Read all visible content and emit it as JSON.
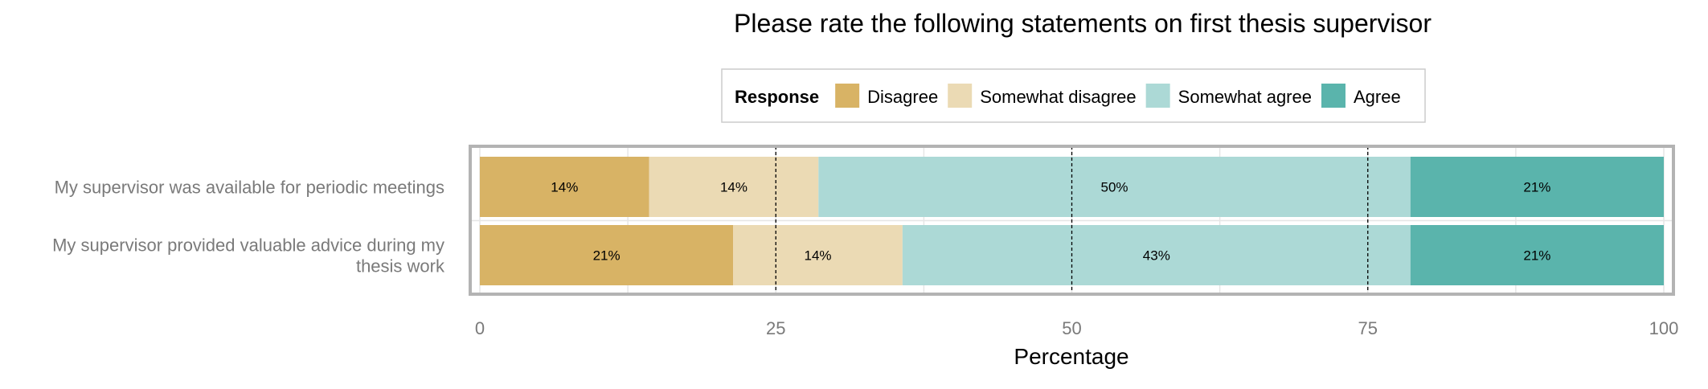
{
  "chart_data": {
    "type": "bar",
    "orientation": "horizontal",
    "stacked": true,
    "title": "Please rate the following statements on first thesis supervisor",
    "xlabel": "Percentage",
    "ylabel": "",
    "xlim": [
      0,
      100
    ],
    "xticks": [
      0,
      25,
      50,
      75,
      100
    ],
    "reference_lines": [
      25,
      50,
      75
    ],
    "grid": true,
    "legend": {
      "title": "Response",
      "position": "top"
    },
    "categories": [
      [
        "My supervisor was available for periodic meetings"
      ],
      [
        "My supervisor provided valuable advice during my",
        "thesis work"
      ]
    ],
    "series": [
      {
        "name": "Disagree",
        "color": "#D8B365",
        "values": [
          14.3,
          21.4
        ],
        "labels": [
          "14%",
          "21%"
        ]
      },
      {
        "name": "Somewhat disagree",
        "color": "#EBDAB4",
        "values": [
          14.3,
          14.3
        ],
        "labels": [
          "14%",
          "14%"
        ]
      },
      {
        "name": "Somewhat agree",
        "color": "#ACD9D6",
        "values": [
          50.0,
          42.9
        ],
        "labels": [
          "50%",
          "43%"
        ]
      },
      {
        "name": "Agree",
        "color": "#5AB4AC",
        "values": [
          21.4,
          21.4
        ],
        "labels": [
          "21%",
          "21%"
        ]
      }
    ]
  }
}
